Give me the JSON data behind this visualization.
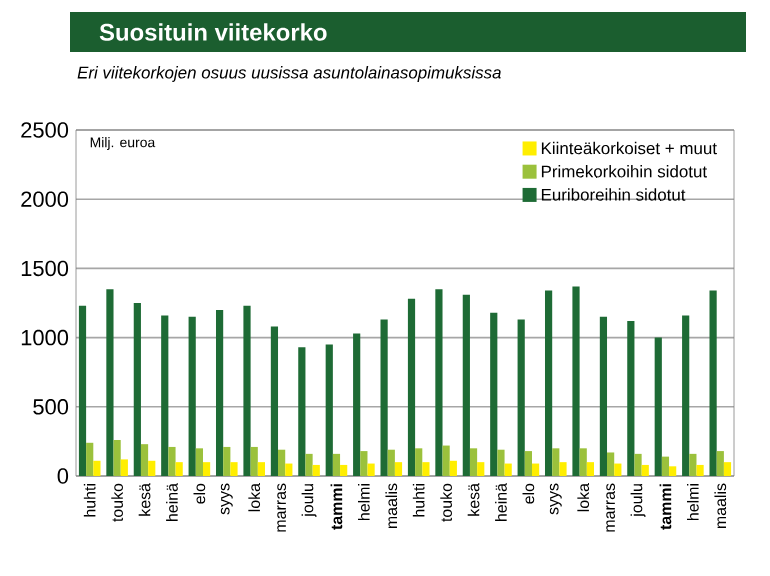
{
  "chart_data": {
    "type": "bar",
    "title": "Suosituin viitekorko",
    "subtitle": "Eri viitekorkojen osuus uusissa asuntolainasopimuksissa",
    "ylabel": "Milj. euroa",
    "categories": [
      "huhti",
      "touko",
      "kesä",
      "heinä",
      "elo",
      "syys",
      "loka",
      "marras",
      "joulu",
      "**tammi**",
      "helmi",
      "maalis",
      "huhti",
      "touko",
      "kesä",
      "heinä",
      "elo",
      "syys",
      "loka",
      "marras",
      "joulu",
      "**tammi**",
      "helmi",
      "maalis"
    ],
    "series": [
      {
        "name": "Euriboreihin sidotut",
        "color": "#1e6b35",
        "values": [
          1230,
          1350,
          1250,
          1160,
          1150,
          1200,
          1230,
          1080,
          930,
          950,
          1030,
          1130,
          1280,
          1350,
          1310,
          1180,
          1130,
          1340,
          1370,
          1150,
          1120,
          1000,
          1160,
          1340
        ]
      },
      {
        "name": "Primekorkoihin sidotut",
        "color": "#9bc13c",
        "values": [
          240,
          260,
          230,
          210,
          200,
          210,
          210,
          190,
          160,
          160,
          180,
          190,
          200,
          220,
          200,
          190,
          180,
          200,
          200,
          170,
          160,
          140,
          160,
          180
        ]
      },
      {
        "name": "Kiinteäkorkoiset + muut",
        "color": "#ffee00",
        "values": [
          110,
          120,
          110,
          100,
          100,
          100,
          100,
          90,
          80,
          80,
          90,
          100,
          100,
          110,
          100,
          90,
          90,
          100,
          100,
          90,
          80,
          70,
          80,
          100
        ]
      }
    ],
    "ylim": [
      0,
      2500
    ],
    "yticks": [
      0,
      500,
      1000,
      1500,
      2000,
      2500
    ],
    "grid": "y",
    "legend": "top right"
  }
}
